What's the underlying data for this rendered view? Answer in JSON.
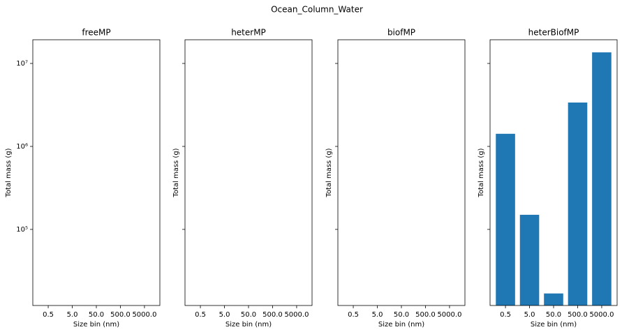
{
  "title": "Ocean_Column_Water",
  "chart_data": [
    {
      "type": "bar",
      "title": "freeMP",
      "xlabel": "Size bin (nm)",
      "ylabel": "Total mass (g)",
      "categories": [
        "0.5",
        "5.0",
        "50.0",
        "500.0",
        "5000.0"
      ],
      "values": [
        null,
        null,
        null,
        null,
        null
      ],
      "color": "#1f77b4",
      "log_scale": true,
      "ylim": [
        12100,
        19300000
      ],
      "yticks": [
        {
          "value": 100000,
          "label": "10⁵"
        },
        {
          "value": 1000000,
          "label": "10⁶"
        },
        {
          "value": 10000000,
          "label": "10⁷"
        }
      ]
    },
    {
      "type": "bar",
      "title": "heterMP",
      "xlabel": "Size bin (nm)",
      "ylabel": "Total mass (g)",
      "categories": [
        "0.5",
        "5.0",
        "50.0",
        "500.0",
        "5000.0"
      ],
      "values": [
        null,
        null,
        null,
        null,
        null
      ],
      "color": "#1f77b4",
      "log_scale": true,
      "ylim": [
        12100,
        19300000
      ]
    },
    {
      "type": "bar",
      "title": "biofMP",
      "xlabel": "Size bin (nm)",
      "ylabel": "Total mass (g)",
      "categories": [
        "0.5",
        "5.0",
        "50.0",
        "500.0",
        "5000.0"
      ],
      "values": [
        null,
        null,
        null,
        null,
        null
      ],
      "color": "#1f77b4",
      "log_scale": true,
      "ylim": [
        12100,
        19300000
      ]
    },
    {
      "type": "bar",
      "title": "heterBiofMP",
      "xlabel": "Size bin (nm)",
      "ylabel": "Total mass (g)",
      "categories": [
        "0.5",
        "5.0",
        "50.0",
        "500.0",
        "5000.0"
      ],
      "values": [
        1420000,
        150000,
        16900,
        3380000,
        13600000
      ],
      "color": "#1f77b4",
      "log_scale": true,
      "ylim": [
        12100,
        19300000
      ]
    }
  ]
}
